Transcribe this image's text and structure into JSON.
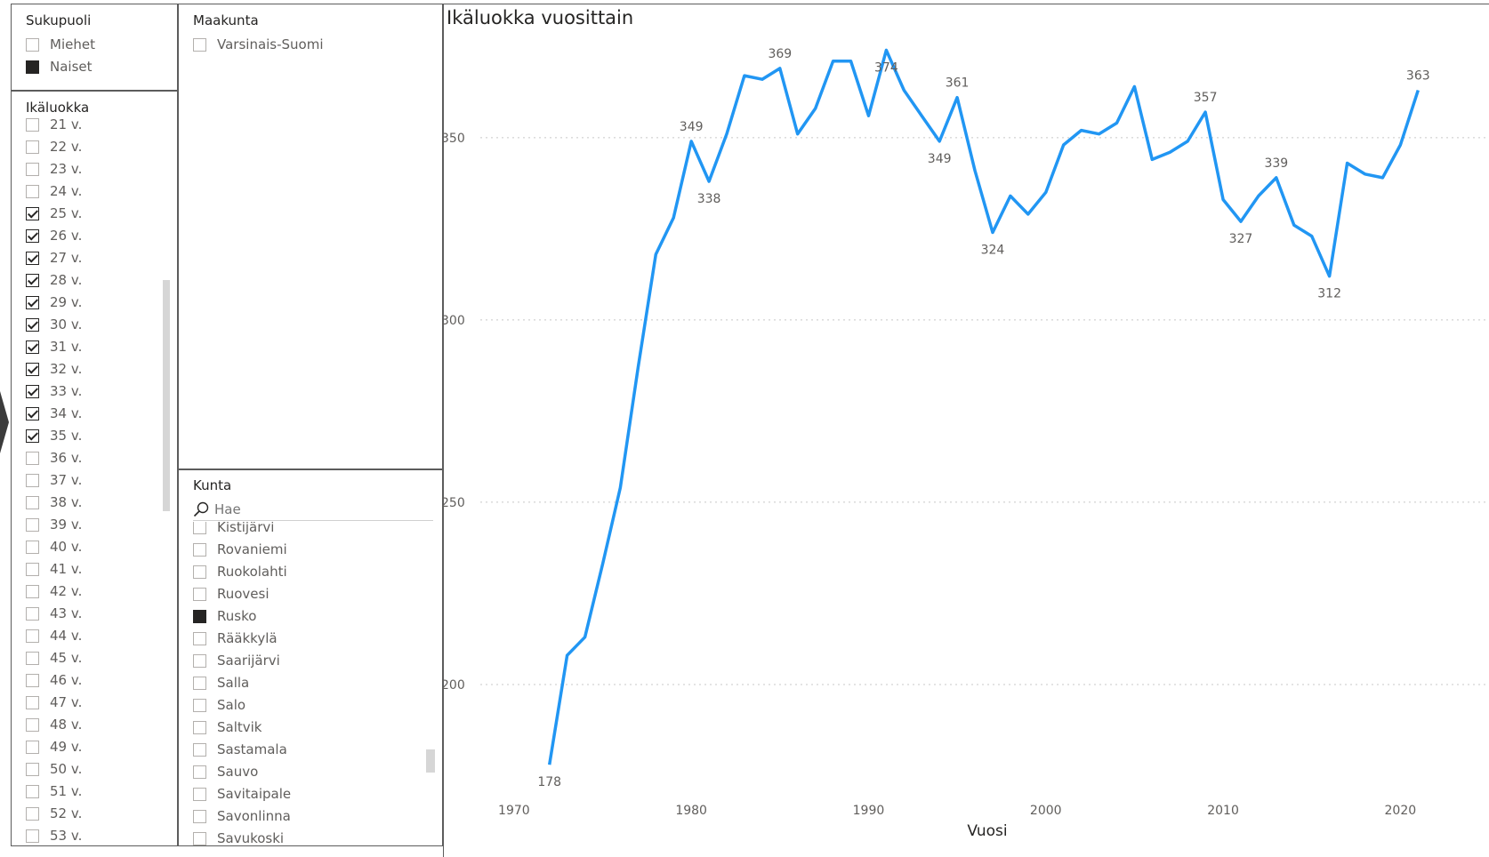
{
  "gender_slicer": {
    "title": "Sukupuoli",
    "items": [
      {
        "label": "Miehet",
        "state": "none"
      },
      {
        "label": "Naiset",
        "state": "filled"
      }
    ]
  },
  "region_slicer": {
    "title": "Maakunta",
    "items": [
      {
        "label": "Varsinais-Suomi",
        "state": "none"
      }
    ]
  },
  "age_slicer": {
    "title": "Ikäluokka",
    "items": [
      {
        "label": "21 v.",
        "state": "none"
      },
      {
        "label": "22 v.",
        "state": "none"
      },
      {
        "label": "23 v.",
        "state": "none"
      },
      {
        "label": "24 v.",
        "state": "none"
      },
      {
        "label": "25 v.",
        "state": "checked"
      },
      {
        "label": "26 v.",
        "state": "checked"
      },
      {
        "label": "27 v.",
        "state": "checked"
      },
      {
        "label": "28 v.",
        "state": "checked"
      },
      {
        "label": "29 v.",
        "state": "checked"
      },
      {
        "label": "30 v.",
        "state": "checked"
      },
      {
        "label": "31 v.",
        "state": "checked"
      },
      {
        "label": "32 v.",
        "state": "checked"
      },
      {
        "label": "33 v.",
        "state": "checked"
      },
      {
        "label": "34 v.",
        "state": "checked"
      },
      {
        "label": "35 v.",
        "state": "checked"
      },
      {
        "label": "36 v.",
        "state": "none"
      },
      {
        "label": "37 v.",
        "state": "none"
      },
      {
        "label": "38 v.",
        "state": "none"
      },
      {
        "label": "39 v.",
        "state": "none"
      },
      {
        "label": "40 v.",
        "state": "none"
      },
      {
        "label": "41 v.",
        "state": "none"
      },
      {
        "label": "42 v.",
        "state": "none"
      },
      {
        "label": "43 v.",
        "state": "none"
      },
      {
        "label": "44 v.",
        "state": "none"
      },
      {
        "label": "45 v.",
        "state": "none"
      },
      {
        "label": "46 v.",
        "state": "none"
      },
      {
        "label": "47 v.",
        "state": "none"
      },
      {
        "label": "48 v.",
        "state": "none"
      },
      {
        "label": "49 v.",
        "state": "none"
      },
      {
        "label": "50 v.",
        "state": "none"
      },
      {
        "label": "51 v.",
        "state": "none"
      },
      {
        "label": "52 v.",
        "state": "none"
      },
      {
        "label": "53 v.",
        "state": "none"
      }
    ]
  },
  "municipality_slicer": {
    "title": "Kunta",
    "search_placeholder": "Hae",
    "items": [
      {
        "label": "Kistijärvi",
        "state": "none"
      },
      {
        "label": "Rovaniemi",
        "state": "none"
      },
      {
        "label": "Ruokolahti",
        "state": "none"
      },
      {
        "label": "Ruovesi",
        "state": "none"
      },
      {
        "label": "Rusko",
        "state": "filled"
      },
      {
        "label": "Rääkkylä",
        "state": "none"
      },
      {
        "label": "Saarijärvi",
        "state": "none"
      },
      {
        "label": "Salla",
        "state": "none"
      },
      {
        "label": "Salo",
        "state": "none"
      },
      {
        "label": "Saltvik",
        "state": "none"
      },
      {
        "label": "Sastamala",
        "state": "none"
      },
      {
        "label": "Sauvo",
        "state": "none"
      },
      {
        "label": "Savitaipale",
        "state": "none"
      },
      {
        "label": "Savonlinna",
        "state": "none"
      },
      {
        "label": "Savukoski",
        "state": "none"
      }
    ]
  },
  "colors": {
    "line": "#2196f3",
    "checkbox_fill": "#252423",
    "gridline": "#c8c8c8"
  },
  "chart_data": {
    "type": "line",
    "title": "Ikäluokka vuosittain",
    "xlabel": "Vuosi",
    "ylabel": "",
    "xlim": [
      1968,
      2025
    ],
    "ylim": [
      170,
      378
    ],
    "x_ticks": [
      1970,
      1980,
      1990,
      2000,
      2010,
      2020
    ],
    "y_ticks": [
      200,
      250,
      300,
      350
    ],
    "grid": true,
    "series": [
      {
        "x": [
          1972,
          1973,
          1974,
          1975,
          1976,
          1977,
          1978,
          1979,
          1980,
          1981,
          1982,
          1983,
          1984,
          1985,
          1986,
          1987,
          1988,
          1989,
          1990,
          1991,
          1992,
          1993,
          1994,
          1995,
          1996,
          1997,
          1998,
          1999,
          2000,
          2001,
          2002,
          2003,
          2004,
          2005,
          2006,
          2007,
          2008,
          2009,
          2010,
          2011,
          2012,
          2013,
          2014,
          2015,
          2016,
          2017,
          2018,
          2019,
          2020,
          2021
        ],
        "y": [
          178,
          208,
          213,
          233,
          254,
          287,
          318,
          328,
          349,
          338,
          351,
          367,
          366,
          369,
          351,
          358,
          371,
          371,
          356,
          374,
          363,
          356,
          349,
          361,
          341,
          324,
          334,
          329,
          335,
          348,
          352,
          351,
          354,
          364,
          344,
          346,
          349,
          357,
          333,
          327,
          334,
          339,
          326,
          323,
          312,
          343,
          340,
          339,
          348,
          363
        ]
      }
    ],
    "data_labels": [
      {
        "x": 1972,
        "y": 178,
        "text": "178",
        "pos": "below"
      },
      {
        "x": 1980,
        "y": 349,
        "text": "349",
        "pos": "above"
      },
      {
        "x": 1981,
        "y": 338,
        "text": "338",
        "pos": "below"
      },
      {
        "x": 1985,
        "y": 369,
        "text": "369",
        "pos": "above"
      },
      {
        "x": 1991,
        "y": 374,
        "text": "374",
        "pos": "below"
      },
      {
        "x": 1994,
        "y": 349,
        "text": "349",
        "pos": "below"
      },
      {
        "x": 1995,
        "y": 361,
        "text": "361",
        "pos": "above"
      },
      {
        "x": 1997,
        "y": 324,
        "text": "324",
        "pos": "below"
      },
      {
        "x": 2009,
        "y": 357,
        "text": "357",
        "pos": "above"
      },
      {
        "x": 2011,
        "y": 327,
        "text": "327",
        "pos": "below"
      },
      {
        "x": 2013,
        "y": 339,
        "text": "339",
        "pos": "above"
      },
      {
        "x": 2016,
        "y": 312,
        "text": "312",
        "pos": "below"
      },
      {
        "x": 2021,
        "y": 363,
        "text": "363",
        "pos": "above"
      }
    ]
  }
}
